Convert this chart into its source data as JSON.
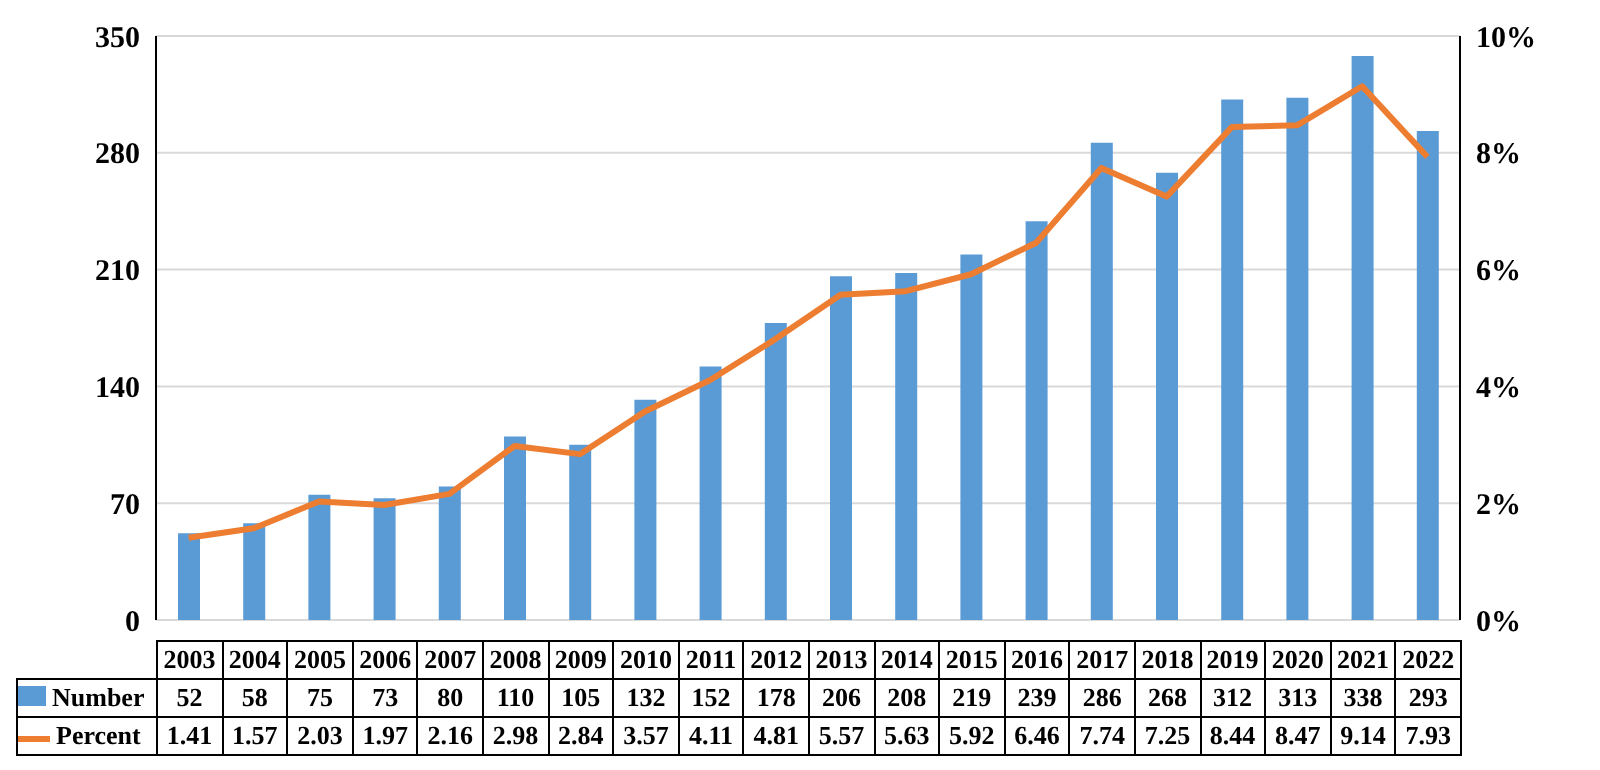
{
  "chart_data": {
    "type": "bar",
    "categories": [
      "2003",
      "2004",
      "2005",
      "2006",
      "2007",
      "2008",
      "2009",
      "2010",
      "2011",
      "2012",
      "2013",
      "2014",
      "2015",
      "2016",
      "2017",
      "2018",
      "2019",
      "2020",
      "2021",
      "2022"
    ],
    "series": [
      {
        "name": "Number",
        "color": "#5b9bd5",
        "values": [
          52,
          58,
          75,
          73,
          80,
          110,
          105,
          132,
          152,
          178,
          206,
          208,
          219,
          239,
          286,
          268,
          312,
          313,
          338,
          293
        ]
      },
      {
        "name": "Percent",
        "type": "line",
        "axis": "y2",
        "color": "#ed7d31",
        "values": [
          1.41,
          1.57,
          2.03,
          1.97,
          2.16,
          2.98,
          2.84,
          3.57,
          4.11,
          4.81,
          5.57,
          5.63,
          5.92,
          6.46,
          7.74,
          7.25,
          8.44,
          8.47,
          9.14,
          7.93
        ]
      }
    ],
    "ylim": [
      0,
      350
    ],
    "yticks": [
      0,
      70,
      140,
      210,
      280,
      350
    ],
    "y2lim": [
      0,
      10
    ],
    "y2ticks": [
      {
        "value": 0,
        "label": "0%"
      },
      {
        "value": 2,
        "label": "2%"
      },
      {
        "value": 4,
        "label": "4%"
      },
      {
        "value": 6,
        "label": "6%"
      },
      {
        "value": 8,
        "label": "8%"
      },
      {
        "value": 10,
        "label": "10%"
      }
    ],
    "grid": "y",
    "legend": "bottom",
    "data_labels": true,
    "marker": "none",
    "line_style": "solid"
  }
}
